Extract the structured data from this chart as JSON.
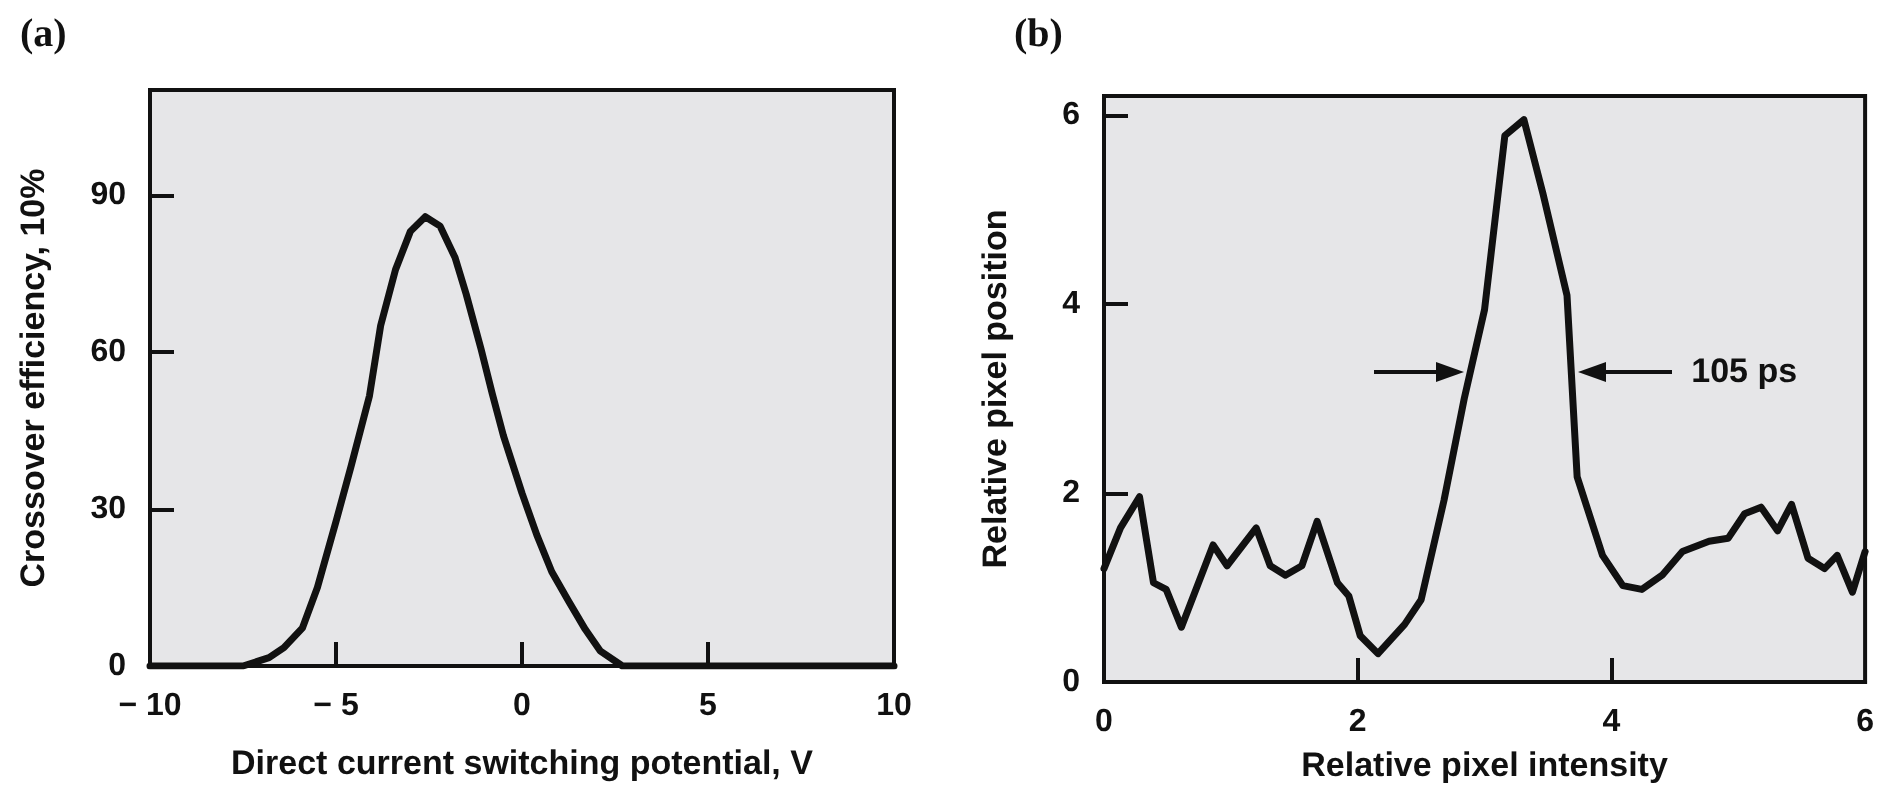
{
  "chart_data": [
    {
      "type": "line",
      "title": "(a)",
      "xlabel": "Direct current switching potential, V",
      "ylabel": "Crossover efficiency, 10%",
      "x": [
        -10,
        -7.5,
        -6.8,
        -6.4,
        -5.9,
        -5.5,
        -5,
        -4.6,
        -4.1,
        -3.8,
        -3.4,
        -3.0,
        -2.6,
        -2.2,
        -1.8,
        -1.5,
        -1.1,
        -0.8,
        -0.5,
        0,
        0.4,
        0.8,
        1.25,
        1.7,
        2.1,
        2.7,
        10
      ],
      "series": [
        {
          "color": "#111111",
          "values": [
            0,
            0,
            1.6,
            3.5,
            7.3,
            15,
            27.6,
            38,
            51.6,
            65,
            75.7,
            83,
            85.8,
            84,
            78,
            71,
            60.5,
            52,
            44,
            33,
            25,
            18,
            12.4,
            7,
            2.9,
            0,
            0
          ]
        }
      ],
      "xlim": [
        -10,
        10
      ],
      "ylim": [
        0,
        110
      ],
      "xticks": [
        -10,
        -5,
        0,
        5,
        10
      ],
      "yticks": [
        0,
        30,
        60,
        90
      ],
      "grid": false,
      "marker": "none"
    },
    {
      "type": "line",
      "title": "(b)",
      "xlabel": "Relative pixel intensity",
      "ylabel": "Relative pixel position",
      "x": [
        0,
        0.13,
        0.28,
        0.39,
        0.49,
        0.61,
        0.86,
        0.97,
        1.2,
        1.31,
        1.43,
        1.56,
        1.68,
        1.84,
        1.93,
        2.02,
        2.16,
        2.37,
        2.5,
        2.68,
        2.84,
        3.0,
        3.16,
        3.31,
        3.46,
        3.65,
        3.73,
        3.93,
        4.09,
        4.24,
        4.4,
        4.56,
        4.77,
        4.92,
        5.05,
        5.18,
        5.31,
        5.42,
        5.55,
        5.68,
        5.78,
        5.9,
        6
      ],
      "series": [
        {
          "color": "#111111",
          "values": [
            1.2,
            1.63,
            1.96,
            1.05,
            0.98,
            0.58,
            1.45,
            1.23,
            1.63,
            1.23,
            1.13,
            1.23,
            1.7,
            1.05,
            0.91,
            0.49,
            0.3,
            0.61,
            0.87,
            1.92,
            3.0,
            3.94,
            5.78,
            5.95,
            5.17,
            4.09,
            2.17,
            1.34,
            1.02,
            0.98,
            1.13,
            1.38,
            1.49,
            1.52,
            1.78,
            1.85,
            1.6,
            1.88,
            1.31,
            1.2,
            1.34,
            0.95,
            1.38
          ]
        }
      ],
      "annotations": [
        "105 ps"
      ],
      "xlim": [
        0,
        6
      ],
      "ylim": [
        0,
        6.2
      ],
      "xticks": [
        0,
        2,
        4,
        6
      ],
      "yticks": [
        0,
        2,
        4,
        6
      ],
      "grid": false,
      "marker": "none"
    }
  ]
}
